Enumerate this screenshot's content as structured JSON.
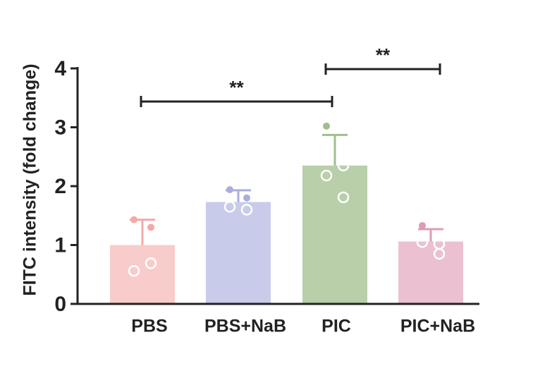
{
  "chart_data": {
    "type": "bar",
    "y_label": "FITC intensity (fold change)",
    "categories": [
      "PBS",
      "PBS+NaB",
      "PIC",
      "PIC+NaB"
    ],
    "values": [
      1.0,
      1.73,
      2.35,
      1.06
    ],
    "errors": [
      0.43,
      0.2,
      0.52,
      0.21
    ],
    "points": [
      [
        1.43,
        1.3,
        0.56,
        0.69
      ],
      [
        1.94,
        1.6,
        1.65,
        1.8
      ],
      [
        3.02,
        2.35,
        2.18,
        1.81
      ],
      [
        1.33,
        1.02,
        1.05,
        0.85
      ]
    ],
    "colors": [
      "#f8cccb",
      "#c8cbea",
      "#b8cfaa",
      "#ebc1d2"
    ],
    "point_colors": [
      "#f3a9a8",
      "#a9ade0",
      "#9fbf8e",
      "#dc9cb8"
    ],
    "annotations": [
      "**",
      "**"
    ],
    "ylim": [
      0,
      4
    ],
    "yticks": [
      0,
      1,
      2,
      3,
      4
    ]
  }
}
